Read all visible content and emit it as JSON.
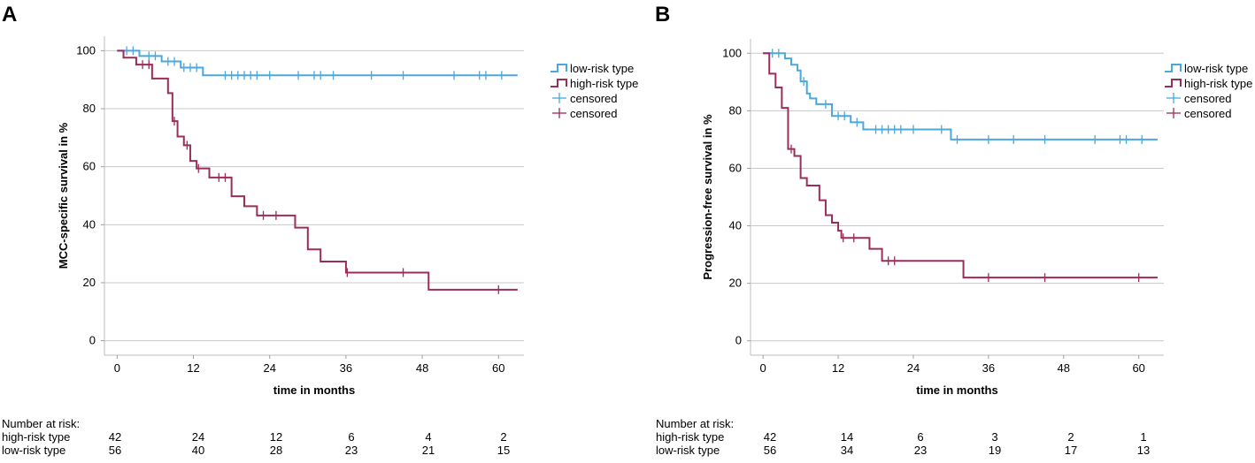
{
  "chart_data": [
    {
      "type": "line",
      "subtype": "kaplan-meier",
      "panel_label": "A",
      "title": "",
      "xlabel": "time in months",
      "ylabel": "MCC-specific survival in %",
      "xlim": [
        -2,
        64
      ],
      "ylim": [
        -5,
        105
      ],
      "xticks": [
        0,
        12,
        24,
        36,
        48,
        60
      ],
      "yticks": [
        0,
        20,
        40,
        60,
        80,
        100
      ],
      "grid": "horizontal",
      "legend_position": "top-right",
      "legend": [
        "low-risk type",
        "high-risk type",
        "censored",
        "censored"
      ],
      "series": [
        {
          "name": "low-risk type",
          "color": "#4aa8dc",
          "steps": [
            [
              0,
              100
            ],
            [
              3.5,
              98.2
            ],
            [
              7,
              96.3
            ],
            [
              10,
              94.2
            ],
            [
              13.5,
              91.5
            ],
            [
              63,
              91.5
            ]
          ],
          "censored": [
            [
              1.5,
              100
            ],
            [
              2.5,
              100
            ],
            [
              5,
              98.2
            ],
            [
              6,
              98.2
            ],
            [
              8,
              96.3
            ],
            [
              9,
              96.3
            ],
            [
              10.5,
              94.2
            ],
            [
              11.5,
              94.2
            ],
            [
              12.5,
              94.2
            ],
            [
              17,
              91.5
            ],
            [
              18,
              91.5
            ],
            [
              19,
              91.5
            ],
            [
              20,
              91.5
            ],
            [
              21,
              91.5
            ],
            [
              22,
              91.5
            ],
            [
              24,
              91.5
            ],
            [
              28.5,
              91.5
            ],
            [
              31,
              91.5
            ],
            [
              32,
              91.5
            ],
            [
              34,
              91.5
            ],
            [
              40,
              91.5
            ],
            [
              45,
              91.5
            ],
            [
              53,
              91.5
            ],
            [
              57,
              91.5
            ],
            [
              58,
              91.5
            ],
            [
              60.5,
              91.5
            ]
          ]
        },
        {
          "name": "high-risk type",
          "color": "#9b2d5a",
          "steps": [
            [
              0,
              100
            ],
            [
              1,
              97.6
            ],
            [
              3,
              95.2
            ],
            [
              5.5,
              90.4
            ],
            [
              8,
              85.4
            ],
            [
              8.7,
              75.7
            ],
            [
              9.5,
              70.4
            ],
            [
              10.5,
              67.4
            ],
            [
              11.5,
              62
            ],
            [
              12.5,
              59.4
            ],
            [
              14.5,
              56.3
            ],
            [
              18,
              49.8
            ],
            [
              20,
              46.4
            ],
            [
              22,
              43.2
            ],
            [
              28,
              39
            ],
            [
              30,
              31.5
            ],
            [
              32,
              27.3
            ],
            [
              36,
              23.5
            ],
            [
              49,
              17.6
            ],
            [
              63,
              17.6
            ]
          ],
          "censored": [
            [
              4,
              95.2
            ],
            [
              5,
              95.2
            ],
            [
              9,
              75.7
            ],
            [
              11,
              67.4
            ],
            [
              12.8,
              59.4
            ],
            [
              16,
              56.3
            ],
            [
              17,
              56.3
            ],
            [
              23,
              43.2
            ],
            [
              25,
              43.2
            ],
            [
              36.2,
              23.5
            ],
            [
              45,
              23.5
            ],
            [
              60,
              17.6
            ]
          ]
        }
      ],
      "risk_table": {
        "title": "Number at risk:",
        "times": [
          0,
          12,
          24,
          36,
          48,
          60
        ],
        "rows": [
          {
            "label": "high-risk type",
            "values": [
              "42",
              "24",
              "12",
              "6",
              "4",
              "2"
            ]
          },
          {
            "label": "low-risk type",
            "values": [
              "56",
              "40",
              "28",
              "23",
              "21",
              "15"
            ]
          }
        ]
      }
    },
    {
      "type": "line",
      "subtype": "kaplan-meier",
      "panel_label": "B",
      "title": "",
      "xlabel": "time in months",
      "ylabel": "Progression-free survival in %",
      "xlim": [
        -2,
        64
      ],
      "ylim": [
        -5,
        105
      ],
      "xticks": [
        0,
        12,
        24,
        36,
        48,
        60
      ],
      "yticks": [
        0,
        20,
        40,
        60,
        80,
        100
      ],
      "grid": "horizontal",
      "legend_position": "top-right",
      "legend": [
        "low-risk type",
        "high-risk type",
        "censored",
        "censored"
      ],
      "series": [
        {
          "name": "low-risk type",
          "color": "#4aa8dc",
          "steps": [
            [
              0,
              100
            ],
            [
              3.5,
              98.2
            ],
            [
              4.5,
              96
            ],
            [
              5.5,
              94
            ],
            [
              6,
              90.2
            ],
            [
              7,
              86
            ],
            [
              7.5,
              84.3
            ],
            [
              8.5,
              82.3
            ],
            [
              11,
              78.2
            ],
            [
              14,
              76
            ],
            [
              16,
              73.5
            ],
            [
              29,
              73.5
            ],
            [
              30,
              70
            ],
            [
              63,
              70
            ]
          ],
          "censored": [
            [
              1.5,
              100
            ],
            [
              2.5,
              100
            ],
            [
              6.5,
              90.2
            ],
            [
              10,
              82.3
            ],
            [
              12,
              78.2
            ],
            [
              13,
              78.2
            ],
            [
              15,
              76
            ],
            [
              18,
              73.5
            ],
            [
              19,
              73.5
            ],
            [
              20,
              73.5
            ],
            [
              21,
              73.5
            ],
            [
              22,
              73.5
            ],
            [
              24,
              73.5
            ],
            [
              28.5,
              73.5
            ],
            [
              31,
              70
            ],
            [
              36,
              70
            ],
            [
              40,
              70
            ],
            [
              45,
              70
            ],
            [
              53,
              70
            ],
            [
              57,
              70
            ],
            [
              58,
              70
            ],
            [
              60.5,
              70
            ]
          ]
        },
        {
          "name": "high-risk type",
          "color": "#9b2d5a",
          "steps": [
            [
              0,
              100
            ],
            [
              1,
              92.9
            ],
            [
              2,
              88.1
            ],
            [
              3,
              81
            ],
            [
              4,
              66.7
            ],
            [
              5,
              64.3
            ],
            [
              6,
              56.6
            ],
            [
              7,
              54
            ],
            [
              9,
              48.9
            ],
            [
              10,
              43.7
            ],
            [
              11,
              41.1
            ],
            [
              12,
              38.3
            ],
            [
              12.5,
              35.8
            ],
            [
              17,
              32
            ],
            [
              19,
              27.8
            ],
            [
              32,
              22
            ],
            [
              63,
              22
            ]
          ],
          "censored": [
            [
              4.5,
              66.7
            ],
            [
              12.8,
              35.8
            ],
            [
              14.5,
              35.8
            ],
            [
              20,
              27.8
            ],
            [
              21,
              27.8
            ],
            [
              36,
              22
            ],
            [
              45,
              22
            ],
            [
              60,
              22
            ]
          ]
        }
      ],
      "risk_table": {
        "title": "Number at risk:",
        "times": [
          0,
          12,
          24,
          36,
          48,
          60
        ],
        "rows": [
          {
            "label": "high-risk type",
            "values": [
              "42",
              "14",
              "6",
              "3",
              "2",
              "1"
            ]
          },
          {
            "label": "low-risk type",
            "values": [
              "56",
              "34",
              "23",
              "19",
              "17",
              "13"
            ]
          }
        ]
      }
    }
  ]
}
